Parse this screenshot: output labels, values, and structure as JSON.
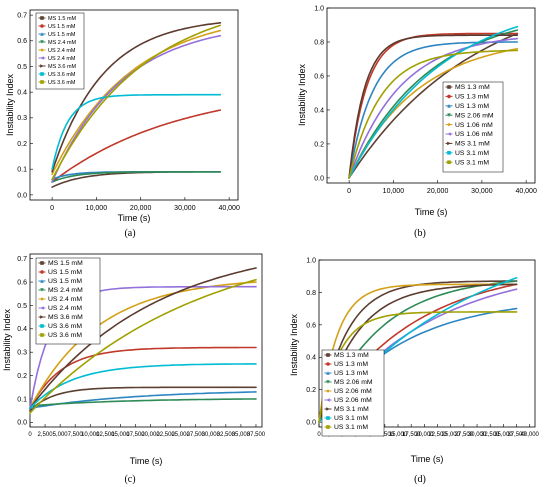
{
  "chart_data": [
    {
      "type": "line",
      "panel_label": "(a)",
      "xlabel": "Time (s)",
      "ylabel": "Instability Index",
      "xlim": [
        -5000,
        42000
      ],
      "ylim": [
        -0.02,
        0.72
      ],
      "xticks": [
        0,
        10000,
        20000,
        30000,
        40000
      ],
      "xtick_labels": [
        "0",
        "10,000",
        "20,000",
        "30,000",
        "40,000"
      ],
      "yticks": [
        0,
        0.1,
        0.2,
        0.3,
        0.4,
        0.5,
        0.6,
        0.7
      ],
      "ytick_labels": [
        "0.0",
        "0.1",
        "0.2",
        "0.3",
        "0.4",
        "0.5",
        "0.6",
        "0.7"
      ],
      "legend_position": "top-left",
      "series": [
        {
          "name": "MS 1.5 mM",
          "color": "#5c4033",
          "x": [
            0,
            38000
          ],
          "y": [
            0.03,
            0.09
          ]
        },
        {
          "name": "US 1.5 mM",
          "color": "#c0392b",
          "x": [
            0,
            38000
          ],
          "y": [
            0.05,
            0.33
          ]
        },
        {
          "name": "US 1.5 mM",
          "color": "#2e86c1",
          "x": [
            0,
            38000
          ],
          "y": [
            0.06,
            0.09
          ]
        },
        {
          "name": "MS 2.4 mM",
          "color": "#2e8b57",
          "x": [
            0,
            38000
          ],
          "y": [
            0.05,
            0.09
          ]
        },
        {
          "name": "US 2.4 mM",
          "color": "#d4a017",
          "x": [
            0,
            38000
          ],
          "y": [
            0.08,
            0.64
          ]
        },
        {
          "name": "US 2.4 mM",
          "color": "#9370db",
          "x": [
            0,
            38000
          ],
          "y": [
            0.05,
            0.62
          ]
        },
        {
          "name": "MS 3.6 mM",
          "color": "#5c3a2e",
          "x": [
            0,
            38000
          ],
          "y": [
            0.09,
            0.67
          ]
        },
        {
          "name": "US 3.6 mM",
          "color": "#00bcd4",
          "x": [
            0,
            38000
          ],
          "y": [
            0.1,
            0.39
          ]
        },
        {
          "name": "US 3.6 mM",
          "color": "#a0a000",
          "x": [
            0,
            38000
          ],
          "y": [
            0.06,
            0.66
          ]
        }
      ]
    },
    {
      "type": "line",
      "panel_label": "(b)",
      "xlabel": "Time (s)",
      "ylabel": "Instability Index",
      "xlim": [
        -5000,
        42000
      ],
      "ylim": [
        -0.03,
        1.0
      ],
      "xticks": [
        0,
        10000,
        20000,
        30000,
        40000
      ],
      "xtick_labels": [
        "0",
        "10,000",
        "20,000",
        "30,000",
        "40,000"
      ],
      "yticks": [
        0,
        0.2,
        0.4,
        0.6,
        0.8,
        1.0
      ],
      "ytick_labels": [
        "0.0",
        "0.2",
        "0.4",
        "0.6",
        "0.8",
        "1.0"
      ],
      "legend_position": "bottom-right",
      "series": [
        {
          "name": "MS 1.3 mM",
          "color": "#5c4033",
          "x": [
            0,
            38000
          ],
          "y": [
            0.0,
            0.85
          ]
        },
        {
          "name": "US 1.3 mM",
          "color": "#c0392b",
          "x": [
            0,
            38000
          ],
          "y": [
            0.0,
            0.85
          ]
        },
        {
          "name": "US 1.3 mM",
          "color": "#2e86c1",
          "x": [
            0,
            38000
          ],
          "y": [
            0.0,
            0.8
          ]
        },
        {
          "name": "MS 2.06 mM",
          "color": "#2e8b57",
          "x": [
            0,
            38000
          ],
          "y": [
            0.0,
            0.87
          ]
        },
        {
          "name": "US 1.06 mM",
          "color": "#d4a017",
          "x": [
            0,
            38000
          ],
          "y": [
            0.0,
            0.76
          ]
        },
        {
          "name": "US 1.06 mM",
          "color": "#9370db",
          "x": [
            0,
            38000
          ],
          "y": [
            0.0,
            0.82
          ]
        },
        {
          "name": "MS 3.1 mM",
          "color": "#5c3a2e",
          "x": [
            0,
            38000
          ],
          "y": [
            0.0,
            0.84
          ]
        },
        {
          "name": "US 3.1 mM",
          "color": "#00bcd4",
          "x": [
            0,
            38000
          ],
          "y": [
            0.0,
            0.89
          ]
        },
        {
          "name": "US 3.1 mM",
          "color": "#a0a000",
          "x": [
            0,
            38000
          ],
          "y": [
            0.0,
            0.75
          ]
        }
      ]
    },
    {
      "type": "line",
      "panel_label": "(c)",
      "xlabel": "Time (s)",
      "ylabel": "Instability Index",
      "xlim": [
        0,
        38500
      ],
      "ylim": [
        -0.02,
        0.72
      ],
      "xticks": [
        0,
        2500,
        5000,
        7500,
        10000,
        12500,
        15000,
        17500,
        20000,
        22500,
        25000,
        27500,
        30000,
        32500,
        35000,
        37500
      ],
      "xtick_labels": [
        "0",
        "2,500",
        "5,000",
        "7,500",
        "10,000",
        "12,500",
        "15,000",
        "17,500",
        "20,000",
        "22,500",
        "25,000",
        "27,500",
        "30,000",
        "32,500",
        "35,000",
        "37,500"
      ],
      "yticks": [
        0,
        0.1,
        0.2,
        0.3,
        0.4,
        0.5,
        0.6,
        0.7
      ],
      "ytick_labels": [
        "0.0",
        "0.1",
        "0.2",
        "0.3",
        "0.4",
        "0.5",
        "0.6",
        "0.7"
      ],
      "legend_position": "top-left",
      "series": [
        {
          "name": "MS 1.5 mM",
          "color": "#5c4033",
          "x": [
            0,
            37500
          ],
          "y": [
            0.05,
            0.15
          ]
        },
        {
          "name": "US 1.5 mM",
          "color": "#c0392b",
          "x": [
            0,
            37500
          ],
          "y": [
            0.06,
            0.32
          ]
        },
        {
          "name": "US 1.5 mM",
          "color": "#2e86c1",
          "x": [
            0,
            37500
          ],
          "y": [
            0.06,
            0.13
          ]
        },
        {
          "name": "MS 2.4 mM",
          "color": "#2e8b57",
          "x": [
            0,
            37500
          ],
          "y": [
            0.07,
            0.1
          ]
        },
        {
          "name": "US 2.4 mM",
          "color": "#d4a017",
          "x": [
            0,
            37500
          ],
          "y": [
            0.06,
            0.6
          ]
        },
        {
          "name": "US 2.4 mM",
          "color": "#9370db",
          "x": [
            0,
            37500
          ],
          "y": [
            0.06,
            0.58
          ]
        },
        {
          "name": "MS 3.6 mM",
          "color": "#5c3a2e",
          "x": [
            0,
            37500
          ],
          "y": [
            0.06,
            0.66
          ]
        },
        {
          "name": "US 3.6 mM",
          "color": "#00bcd4",
          "x": [
            0,
            37500
          ],
          "y": [
            0.06,
            0.25
          ]
        },
        {
          "name": "US 3.6 mM",
          "color": "#a0a000",
          "x": [
            0,
            37500
          ],
          "y": [
            0.04,
            0.61
          ]
        }
      ]
    },
    {
      "type": "line",
      "panel_label": "(d)",
      "xlabel": "Time (s)",
      "ylabel": "Instability Index",
      "xlim": [
        0,
        41000
      ],
      "ylim": [
        -0.03,
        1.0
      ],
      "xticks": [
        0,
        2500,
        5000,
        7500,
        10000,
        12500,
        15000,
        17500,
        20000,
        22500,
        25000,
        27500,
        30000,
        32500,
        35000,
        37500,
        40000
      ],
      "xtick_labels": [
        "0",
        "2,500",
        "5,000",
        "7,500",
        "10,000",
        "12,500",
        "15,000",
        "17,500",
        "20,000",
        "22,500",
        "25,000",
        "27,500",
        "30,000",
        "32,500",
        "35,000",
        "37,500",
        "40,000"
      ],
      "yticks": [
        0,
        0.2,
        0.4,
        0.6,
        0.8,
        1.0
      ],
      "ytick_labels": [
        "0.0",
        "0.2",
        "0.4",
        "0.6",
        "0.8",
        "1.0"
      ],
      "legend_position": "bottom-left",
      "series": [
        {
          "name": "MS 1.3 mM",
          "color": "#5c4033",
          "x": [
            0,
            37500
          ],
          "y": [
            0.0,
            0.87
          ]
        },
        {
          "name": "US 1.3 mM",
          "color": "#c0392b",
          "x": [
            0,
            37500
          ],
          "y": [
            0.0,
            0.85
          ]
        },
        {
          "name": "US 1.3 mM",
          "color": "#2e86c1",
          "x": [
            0,
            37500
          ],
          "y": [
            0.0,
            0.7
          ]
        },
        {
          "name": "MS 2.06 mM",
          "color": "#2e8b57",
          "x": [
            0,
            37500
          ],
          "y": [
            0.0,
            0.87
          ]
        },
        {
          "name": "US 2.06 mM",
          "color": "#d4a017",
          "x": [
            0,
            37500
          ],
          "y": [
            0.0,
            0.85
          ]
        },
        {
          "name": "US 2.06 mM",
          "color": "#9370db",
          "x": [
            0,
            37500
          ],
          "y": [
            0.0,
            0.82
          ]
        },
        {
          "name": "MS 3.1 mM",
          "color": "#5c3a2e",
          "x": [
            0,
            37500
          ],
          "y": [
            0.0,
            0.85
          ]
        },
        {
          "name": "US 3.1 mM",
          "color": "#00bcd4",
          "x": [
            0,
            37500
          ],
          "y": [
            0.0,
            0.89
          ]
        },
        {
          "name": "US 3.1 mM",
          "color": "#a0a000",
          "x": [
            0,
            37500
          ],
          "y": [
            0.0,
            0.68
          ]
        }
      ]
    }
  ]
}
